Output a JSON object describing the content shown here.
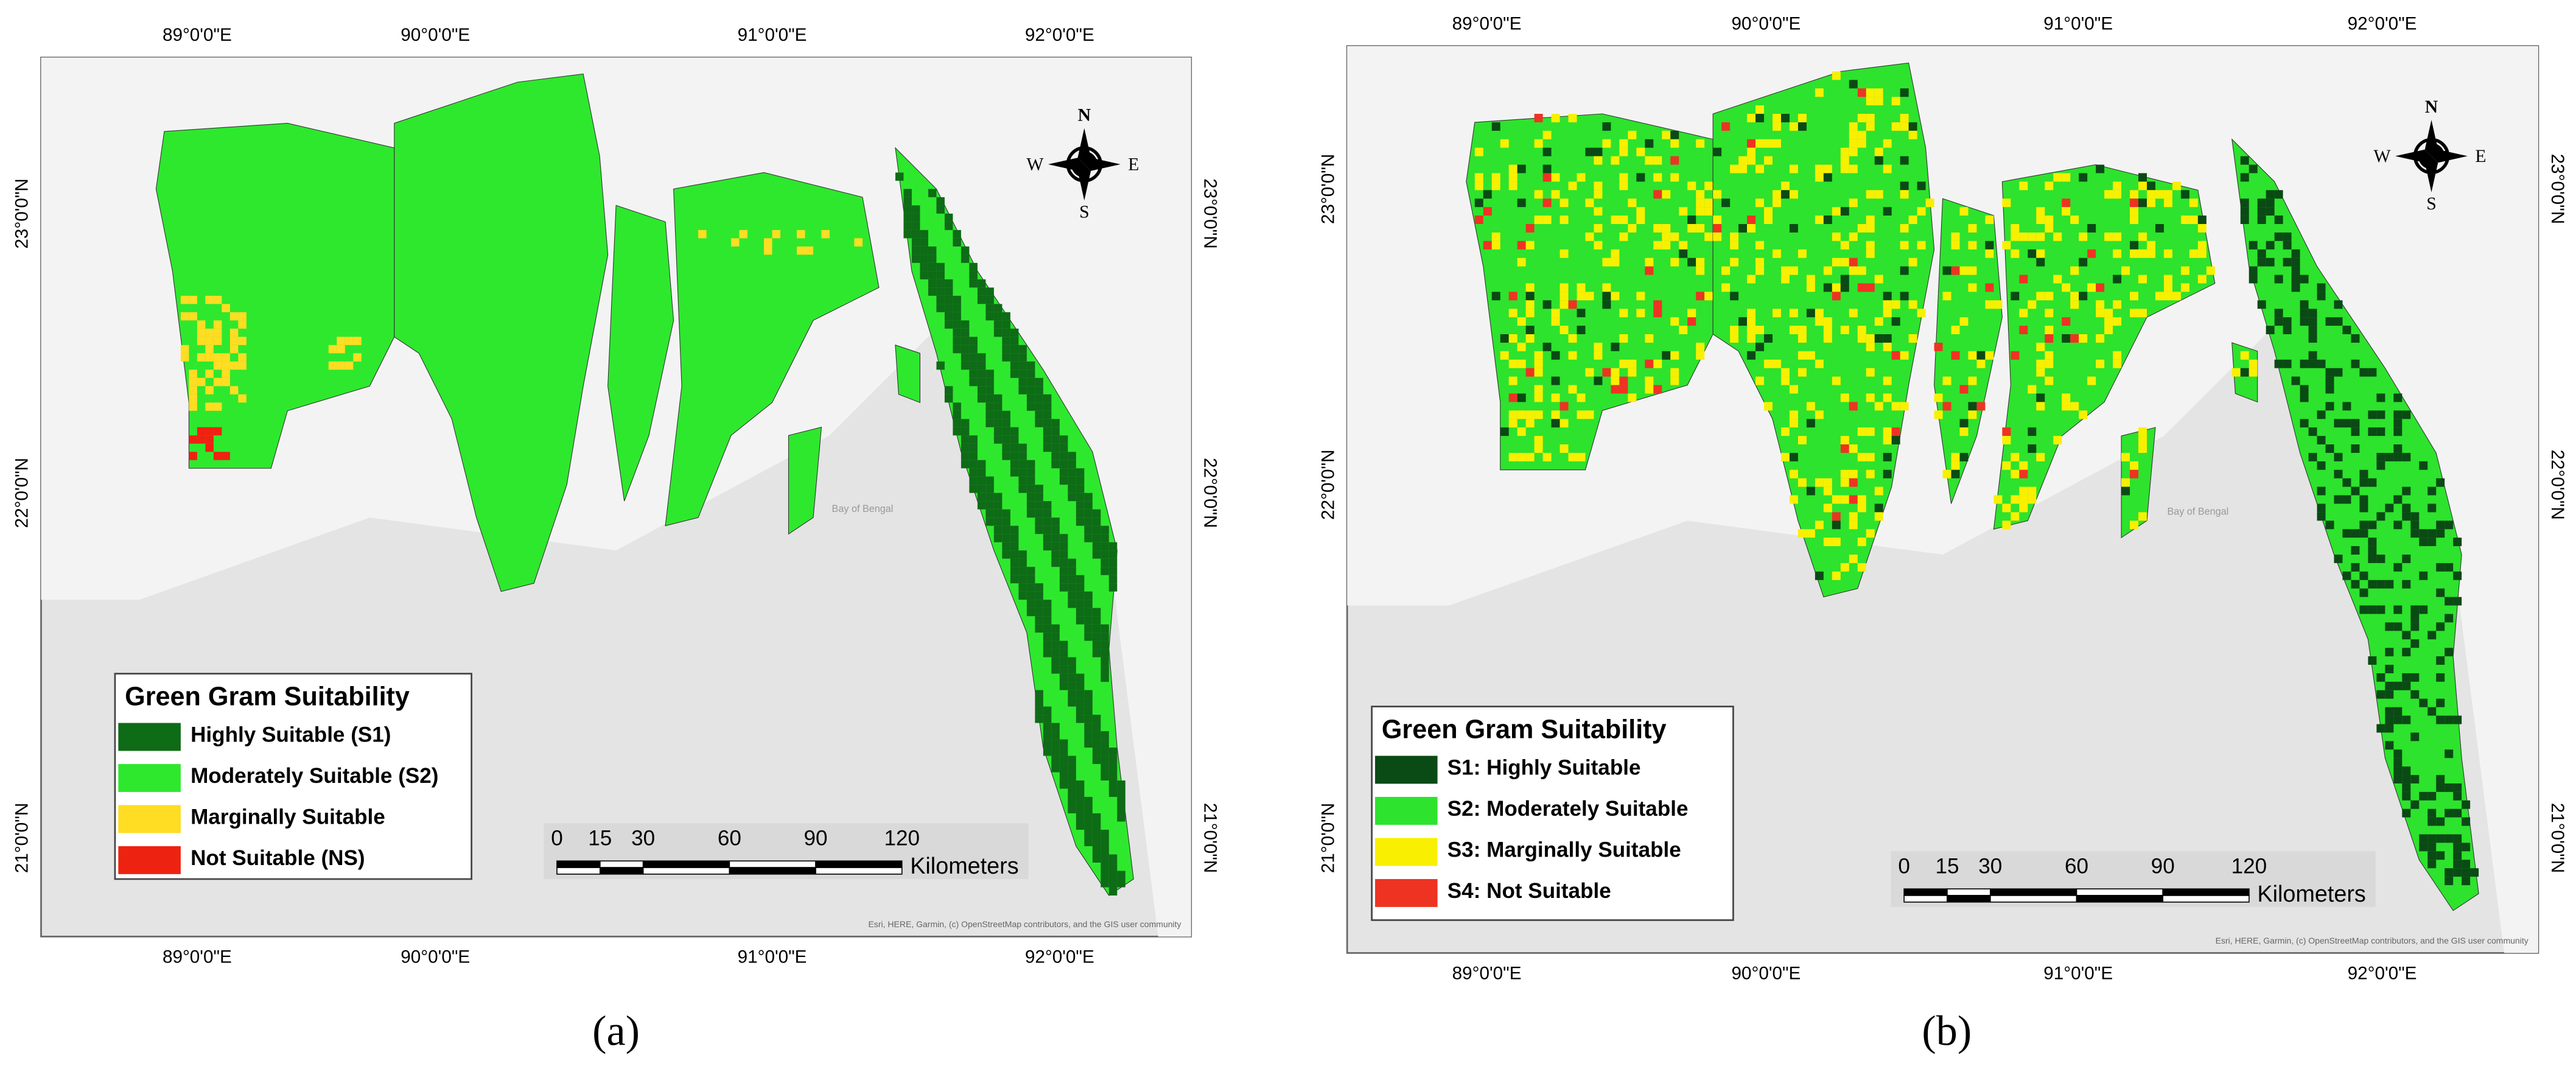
{
  "figure": {
    "lon_labels": [
      "89°0'0\"E",
      "90°0'0\"E",
      "91°0'0\"E",
      "92°0'0\"E"
    ],
    "lat_labels": [
      "23°0'0\"N",
      "22°0'0\"N",
      "21°0'0\"N"
    ],
    "compass": {
      "n": "N",
      "s": "S",
      "e": "E",
      "w": "W"
    },
    "scale": {
      "ticks": [
        0,
        15,
        30,
        60,
        90,
        120
      ],
      "unit": "Kilometers"
    },
    "sea_label": "Bay of Bengal",
    "attribution": "Esri, HERE, Garmin, (c) OpenStreetMap contributors, and the GIS user community",
    "panels": [
      {
        "label": "(a)",
        "legend": {
          "title": "Green Gram Suitability",
          "items": [
            {
              "label": "Highly Suitable (S1)",
              "color": "#0e6b16"
            },
            {
              "label": "Moderately Suitable (S2)",
              "color": "#2ee82e"
            },
            {
              "label": "Marginally Suitable",
              "color": "#ffdd22"
            },
            {
              "label": "Not Suitable (NS)",
              "color": "#ee2211"
            }
          ]
        }
      },
      {
        "label": "(b)",
        "legend": {
          "title": "Green Gram Suitability",
          "items": [
            {
              "label": "S1: Highly Suitable",
              "color": "#0a4a14"
            },
            {
              "label": "S2: Moderately Suitable",
              "color": "#2de32d"
            },
            {
              "label": "S3: Marginally  Suitable",
              "color": "#f8f000"
            },
            {
              "label": "S4: Not Suitable",
              "color": "#ee3322"
            }
          ]
        }
      }
    ]
  }
}
